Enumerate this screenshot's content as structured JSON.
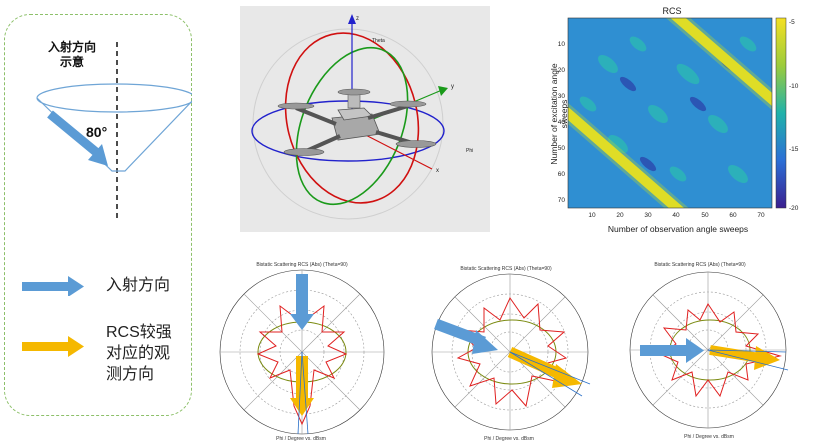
{
  "legend": {
    "incidence_title": "入射方向\n示意",
    "angle": "80°",
    "item1_label": "入射方向",
    "item2_label": "RCS较强\n对应的观\n测方向"
  },
  "drone": {
    "axis_labels": {
      "z": "z",
      "y": "y",
      "x": "x",
      "theta": "Theta",
      "phi": "Phi"
    }
  },
  "heatmap": {
    "title": "RCS",
    "xlabel": "Number of observation angle sweeps",
    "ylabel": "Number of excitation angle sweeps",
    "xticks": [
      "10",
      "20",
      "30",
      "40",
      "50",
      "60",
      "70"
    ],
    "yticks": [
      "10",
      "20",
      "30",
      "40",
      "50",
      "60",
      "70"
    ],
    "colorbar_ticks": [
      "-5",
      "-10",
      "-15",
      "-20"
    ]
  },
  "polar_plots": [
    {
      "title": "Bistatic Scattering RCS (Abs) (Theta=90)",
      "xlabel": "Phi / Degree vs. dBsm"
    },
    {
      "title": "Bistatic Scattering RCS (Abs) (Theta=90)",
      "xlabel": "Phi / Degree vs. dBsm"
    },
    {
      "title": "Bistatic Scattering RCS (Abs) (Theta=90)",
      "xlabel": "Phi / Degree vs. dBsm"
    }
  ],
  "colors": {
    "incident": "#5b9bd5",
    "strong": "#f5b800",
    "panel_border": "#8dc06a",
    "rcs_curve": "#e02020"
  }
}
